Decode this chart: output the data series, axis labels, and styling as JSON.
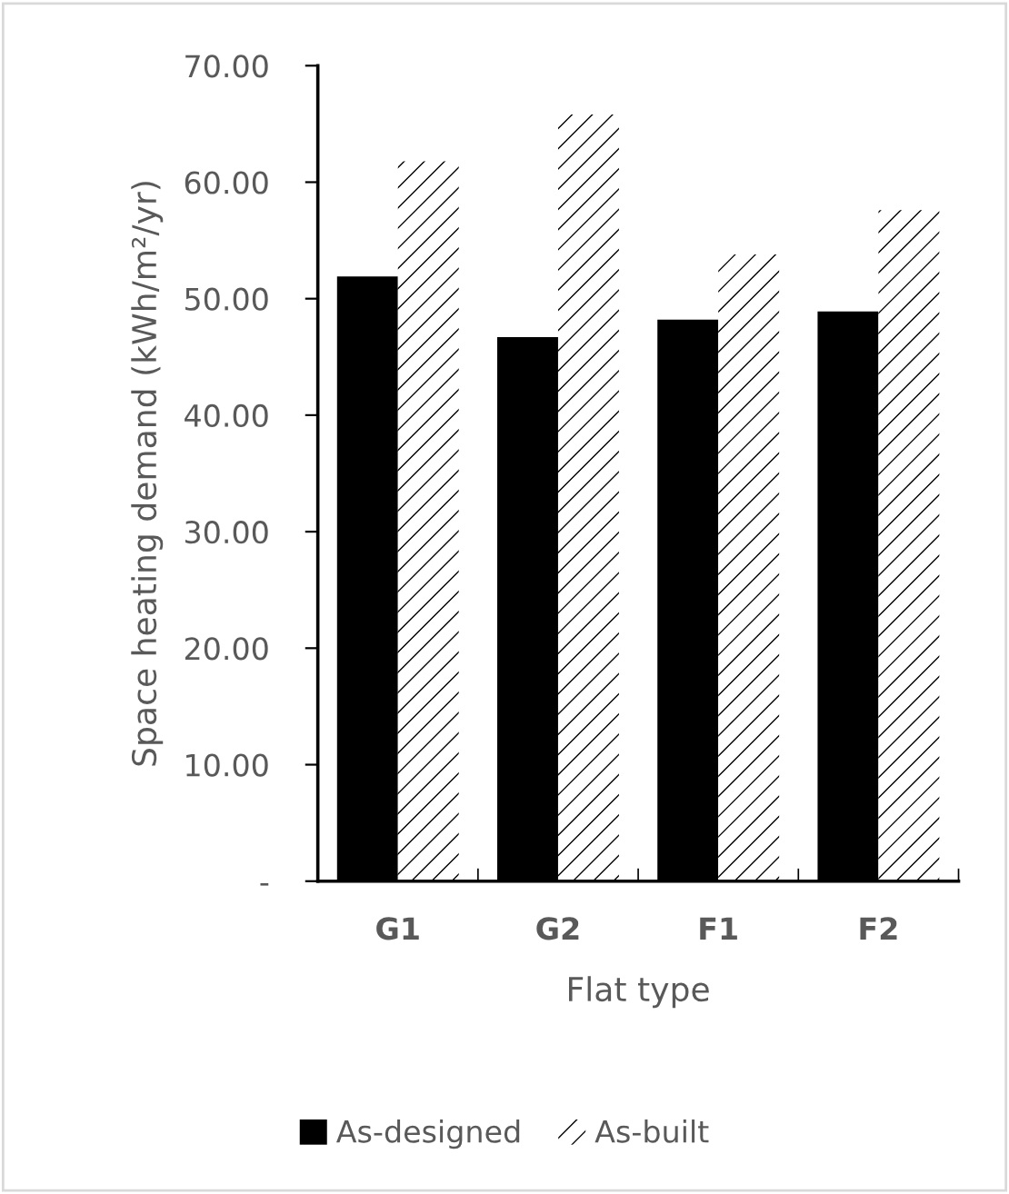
{
  "chart_data": {
    "type": "bar",
    "xlabel": "Flat type",
    "ylabel": "Space heating demand (kWh/m²/yr)",
    "categories": [
      "G1",
      "G2",
      "F1",
      "F2"
    ],
    "series": [
      {
        "name": "As-designed",
        "color": "#000000",
        "values": [
          51.9,
          46.7,
          48.2,
          48.9
        ]
      },
      {
        "name": "As-built",
        "color": "#ffffff",
        "values": [
          61.8,
          65.8,
          53.8,
          57.6
        ]
      }
    ],
    "ylim": [
      0,
      70
    ],
    "yticks": [
      {
        "value": 0,
        "label": "-"
      },
      {
        "value": 10,
        "label": "10.00"
      },
      {
        "value": 20,
        "label": "20.00"
      },
      {
        "value": 30,
        "label": "30.00"
      },
      {
        "value": 40,
        "label": "40.00"
      },
      {
        "value": 50,
        "label": "50.00"
      },
      {
        "value": 60,
        "label": "60.00"
      },
      {
        "value": 70,
        "label": "70.00"
      }
    ],
    "grid": false,
    "legend": "bottom"
  }
}
